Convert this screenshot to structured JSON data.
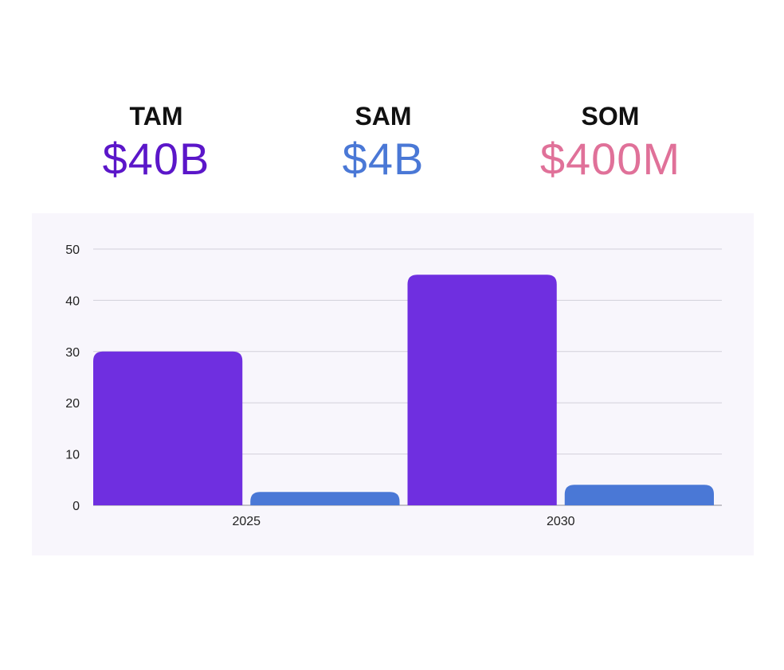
{
  "metrics": [
    {
      "label": "TAM",
      "value": "$40B",
      "color": "#5b16c9"
    },
    {
      "label": "SAM",
      "value": "$4B",
      "color": "#4a78d6"
    },
    {
      "label": "SOM",
      "value": "$400M",
      "color": "#e07199"
    }
  ],
  "chart_data": {
    "type": "bar",
    "categories": [
      "2025",
      "2030"
    ],
    "series": [
      {
        "values": [
          30,
          45
        ],
        "color": "#6f2fe0"
      },
      {
        "values": [
          2.6,
          4
        ],
        "color": "#4a78d6"
      }
    ],
    "ylim": [
      0,
      50
    ],
    "yticks": [
      0,
      10,
      20,
      30,
      40,
      50
    ],
    "grid": true,
    "title": "",
    "xlabel": "",
    "ylabel": ""
  }
}
